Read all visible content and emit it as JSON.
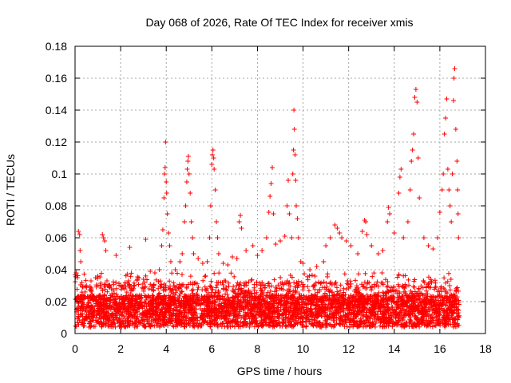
{
  "chart_data": {
    "type": "scatter",
    "title": "Day 068 of 2026, Rate Of TEC Index for receiver xmis",
    "xlabel": "GPS time / hours",
    "ylabel": "ROTI / TECUs",
    "xlim": [
      0,
      18
    ],
    "ylim": [
      0,
      0.18
    ],
    "x_ticks": [
      0,
      2,
      4,
      6,
      8,
      10,
      12,
      14,
      16,
      18
    ],
    "x_tick_labels": [
      "0",
      "2",
      "4",
      "6",
      "8",
      "10",
      "12",
      "14",
      "16",
      "18"
    ],
    "y_ticks": [
      0,
      0.02,
      0.04,
      0.06,
      0.08,
      0.1,
      0.12,
      0.14,
      0.16,
      0.18
    ],
    "y_tick_labels": [
      "0",
      "0.02",
      "0.04",
      "0.06",
      "0.08",
      "0.1",
      "0.12",
      "0.14",
      "0.16",
      "0.18"
    ],
    "grid": true,
    "legend": "none",
    "marker": "plus",
    "point_color": "#ff0000",
    "series": [
      {
        "values": [
          [
            0.05,
            0.038
          ],
          [
            0.1,
            0.035
          ],
          [
            0.15,
            0.064
          ],
          [
            0.2,
            0.062
          ],
          [
            0.22,
            0.052
          ],
          [
            0.25,
            0.045
          ],
          [
            0.3,
            0.032
          ],
          [
            0.5,
            0.03
          ],
          [
            0.7,
            0.033
          ],
          [
            0.9,
            0.035
          ],
          [
            1.0,
            0.036
          ],
          [
            1.2,
            0.062
          ],
          [
            1.25,
            0.06
          ],
          [
            1.3,
            0.058
          ],
          [
            1.35,
            0.052
          ],
          [
            1.4,
            0.033
          ],
          [
            1.6,
            0.028
          ],
          [
            1.8,
            0.049
          ],
          [
            2.0,
            0.03
          ],
          [
            2.2,
            0.032
          ],
          [
            2.4,
            0.054
          ],
          [
            2.6,
            0.03
          ],
          [
            2.8,
            0.035
          ],
          [
            3.0,
            0.034
          ],
          [
            3.1,
            0.059
          ],
          [
            3.3,
            0.039
          ],
          [
            3.5,
            0.038
          ],
          [
            3.7,
            0.04
          ],
          [
            3.8,
            0.055
          ],
          [
            3.85,
            0.065
          ],
          [
            3.9,
            0.085
          ],
          [
            3.92,
            0.1
          ],
          [
            3.95,
            0.104
          ],
          [
            3.97,
            0.12
          ],
          [
            4.0,
            0.095
          ],
          [
            4.02,
            0.088
          ],
          [
            4.05,
            0.075
          ],
          [
            4.1,
            0.063
          ],
          [
            4.15,
            0.055
          ],
          [
            4.2,
            0.045
          ],
          [
            4.4,
            0.04
          ],
          [
            4.6,
            0.045
          ],
          [
            4.7,
            0.05
          ],
          [
            4.8,
            0.07
          ],
          [
            4.85,
            0.08
          ],
          [
            4.9,
            0.095
          ],
          [
            4.92,
            0.103
          ],
          [
            4.95,
            0.108
          ],
          [
            4.97,
            0.111
          ],
          [
            5.0,
            0.1
          ],
          [
            5.05,
            0.088
          ],
          [
            5.1,
            0.07
          ],
          [
            5.15,
            0.06
          ],
          [
            5.2,
            0.05
          ],
          [
            5.4,
            0.047
          ],
          [
            5.6,
            0.044
          ],
          [
            5.8,
            0.045
          ],
          [
            5.9,
            0.06
          ],
          [
            5.95,
            0.08
          ],
          [
            6.0,
            0.106
          ],
          [
            6.02,
            0.112
          ],
          [
            6.05,
            0.115
          ],
          [
            6.08,
            0.11
          ],
          [
            6.1,
            0.103
          ],
          [
            6.15,
            0.09
          ],
          [
            6.2,
            0.07
          ],
          [
            6.25,
            0.06
          ],
          [
            6.3,
            0.05
          ],
          [
            6.5,
            0.044
          ],
          [
            6.7,
            0.043
          ],
          [
            6.9,
            0.048
          ],
          [
            7.1,
            0.047
          ],
          [
            7.2,
            0.07
          ],
          [
            7.25,
            0.074
          ],
          [
            7.3,
            0.066
          ],
          [
            7.5,
            0.052
          ],
          [
            7.8,
            0.055
          ],
          [
            8.0,
            0.049
          ],
          [
            8.2,
            0.052
          ],
          [
            8.4,
            0.06
          ],
          [
            8.5,
            0.076
          ],
          [
            8.55,
            0.086
          ],
          [
            8.6,
            0.094
          ],
          [
            8.65,
            0.104
          ],
          [
            8.7,
            0.075
          ],
          [
            8.8,
            0.056
          ],
          [
            9.0,
            0.058
          ],
          [
            9.2,
            0.061
          ],
          [
            9.3,
            0.08
          ],
          [
            9.35,
            0.096
          ],
          [
            9.4,
            0.075
          ],
          [
            9.5,
            0.06
          ],
          [
            9.55,
            0.1
          ],
          [
            9.58,
            0.115
          ],
          [
            9.6,
            0.14
          ],
          [
            9.62,
            0.128
          ],
          [
            9.65,
            0.112
          ],
          [
            9.68,
            0.096
          ],
          [
            9.7,
            0.08
          ],
          [
            9.75,
            0.072
          ],
          [
            9.8,
            0.06
          ],
          [
            9.9,
            0.045
          ],
          [
            10.0,
            0.044
          ],
          [
            10.3,
            0.04
          ],
          [
            10.6,
            0.042
          ],
          [
            10.9,
            0.045
          ],
          [
            11.0,
            0.055
          ],
          [
            11.2,
            0.06
          ],
          [
            11.4,
            0.068
          ],
          [
            11.5,
            0.066
          ],
          [
            11.6,
            0.063
          ],
          [
            11.7,
            0.06
          ],
          [
            11.9,
            0.058
          ],
          [
            12.1,
            0.055
          ],
          [
            12.4,
            0.05
          ],
          [
            12.6,
            0.064
          ],
          [
            12.7,
            0.071
          ],
          [
            12.75,
            0.07
          ],
          [
            12.8,
            0.062
          ],
          [
            13.0,
            0.055
          ],
          [
            13.3,
            0.05
          ],
          [
            13.5,
            0.052
          ],
          [
            13.7,
            0.07
          ],
          [
            13.75,
            0.079
          ],
          [
            13.8,
            0.075
          ],
          [
            14.0,
            0.063
          ],
          [
            14.2,
            0.088
          ],
          [
            14.25,
            0.098
          ],
          [
            14.3,
            0.103
          ],
          [
            14.4,
            0.06
          ],
          [
            14.6,
            0.07
          ],
          [
            14.7,
            0.09
          ],
          [
            14.75,
            0.108
          ],
          [
            14.8,
            0.115
          ],
          [
            14.85,
            0.125
          ],
          [
            14.9,
            0.148
          ],
          [
            14.95,
            0.153
          ],
          [
            15.0,
            0.145
          ],
          [
            15.05,
            0.11
          ],
          [
            15.1,
            0.085
          ],
          [
            15.3,
            0.06
          ],
          [
            15.5,
            0.055
          ],
          [
            15.7,
            0.053
          ],
          [
            15.9,
            0.06
          ],
          [
            16.0,
            0.076
          ],
          [
            16.1,
            0.09
          ],
          [
            16.15,
            0.1
          ],
          [
            16.2,
            0.125
          ],
          [
            16.25,
            0.135
          ],
          [
            16.3,
            0.147
          ],
          [
            16.35,
            0.103
          ],
          [
            16.4,
            0.09
          ],
          [
            16.45,
            0.08
          ],
          [
            16.5,
            0.07
          ],
          [
            16.55,
            0.1
          ],
          [
            16.6,
            0.146
          ],
          [
            16.62,
            0.16
          ],
          [
            16.65,
            0.166
          ],
          [
            16.7,
            0.128
          ],
          [
            16.75,
            0.108
          ],
          [
            16.78,
            0.09
          ],
          [
            16.8,
            0.075
          ],
          [
            16.82,
            0.06
          ]
        ]
      }
    ]
  }
}
